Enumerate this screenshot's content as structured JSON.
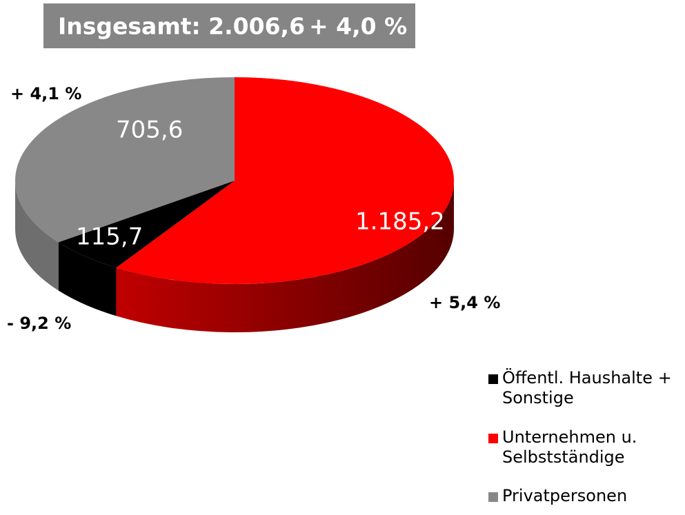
{
  "chart_data": {
    "type": "pie",
    "title": "Insgesamt: 2.006,6",
    "title_change": "+ 4,0 %",
    "categories": [
      "Öffentl. Haushalte + Sonstige",
      "Unternehmen u. Selbstständige",
      "Privatpersonen"
    ],
    "values": [
      115.7,
      1185.2,
      705.6
    ],
    "value_labels": [
      "115,7",
      "1.185,2",
      "705,6"
    ],
    "changes": [
      "- 9,2  %",
      "+ 5,4 %",
      "+ 4,1 %"
    ],
    "colors": [
      "#000000",
      "#ff0000",
      "#888888"
    ],
    "side_colors": [
      "#000000",
      "#8a0000",
      "#6e6e6e"
    ]
  }
}
